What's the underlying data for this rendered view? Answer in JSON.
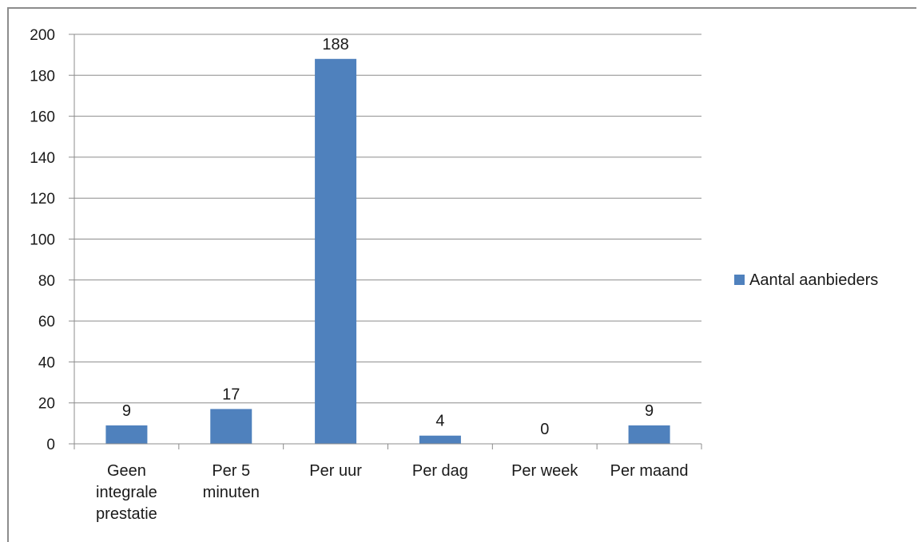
{
  "chart_data": {
    "type": "bar",
    "categories": [
      [
        "Geen",
        "integrale",
        "prestatie"
      ],
      [
        "Per 5",
        "minuten"
      ],
      [
        "Per uur"
      ],
      [
        "Per dag"
      ],
      [
        "Per week"
      ],
      [
        "Per maand"
      ]
    ],
    "series": [
      {
        "name": "Aantal aanbieders",
        "values": [
          9,
          17,
          188,
          4,
          0,
          9
        ],
        "color": "#4f81bd"
      }
    ],
    "data_labels": [
      "9",
      "17",
      "188",
      "4",
      "0",
      "9"
    ],
    "yticks": [
      "0",
      "20",
      "40",
      "60",
      "80",
      "100",
      "120",
      "140",
      "160",
      "180",
      "200"
    ],
    "ylim": [
      0,
      200
    ],
    "grid": true,
    "legend_position": "right",
    "title": "",
    "xlabel": "",
    "ylabel": ""
  }
}
